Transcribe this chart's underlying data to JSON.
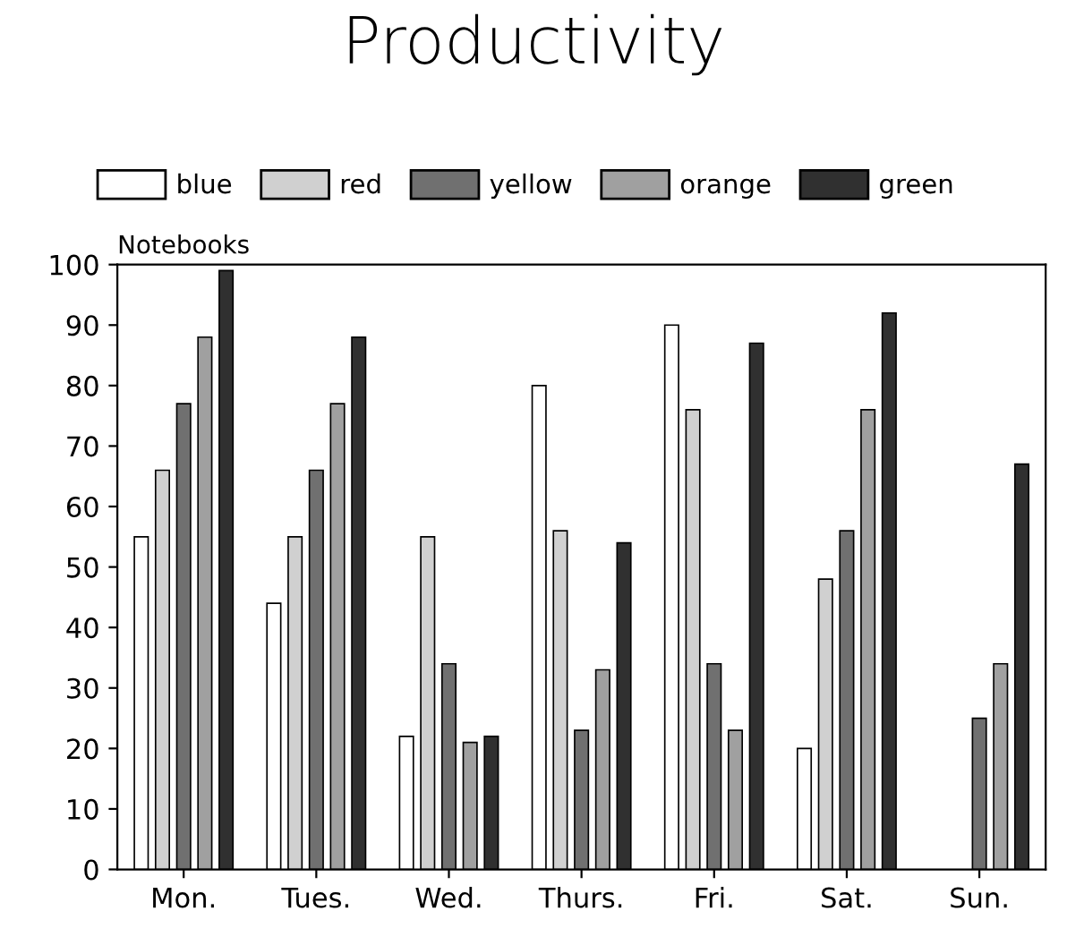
{
  "chart_data": {
    "type": "bar",
    "title": "Productivity",
    "ylabel": "Notebooks",
    "categories": [
      "Mon.",
      "Tues.",
      "Wed.",
      "Thurs.",
      "Fri.",
      "Sat.",
      "Sun."
    ],
    "series": [
      {
        "name": "blue",
        "color": "#ffffff",
        "values": [
          55,
          44,
          22,
          80,
          90,
          20,
          null
        ]
      },
      {
        "name": "red",
        "color": "#d0d0d0",
        "values": [
          66,
          55,
          55,
          56,
          76,
          48,
          null
        ]
      },
      {
        "name": "yellow",
        "color": "#707070",
        "values": [
          77,
          66,
          34,
          23,
          34,
          56,
          25
        ]
      },
      {
        "name": "orange",
        "color": "#a0a0a0",
        "values": [
          88,
          77,
          21,
          33,
          23,
          76,
          34
        ]
      },
      {
        "name": "green",
        "color": "#303030",
        "values": [
          99,
          88,
          22,
          54,
          87,
          92,
          67
        ]
      }
    ],
    "ylim": [
      0,
      100
    ],
    "yticks": [
      0,
      10,
      20,
      30,
      40,
      50,
      60,
      70,
      80,
      90,
      100
    ],
    "legend": "top",
    "grid": false
  }
}
